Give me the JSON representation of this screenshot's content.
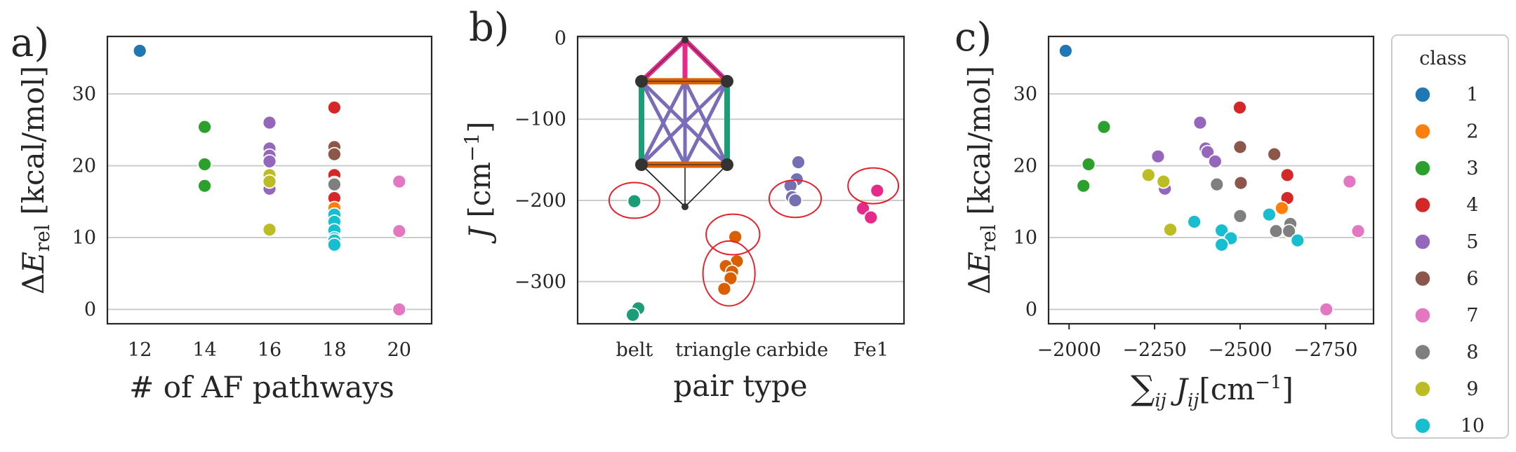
{
  "chart_data": [
    {
      "id": "a",
      "type": "scatter",
      "panel_label": "a)",
      "xlabel": "# of AF pathways",
      "ylabel": "ΔE_rel [kcal/mol]",
      "xlim": [
        11.0,
        21.0
      ],
      "ylim": [
        -2,
        38
      ],
      "xticks": [
        12,
        14,
        16,
        18,
        20
      ],
      "yticks": [
        0,
        10,
        20,
        30
      ],
      "grid": "y",
      "points": [
        {
          "x": 12,
          "y": 36.0,
          "class": 1
        },
        {
          "x": 14,
          "y": 25.4,
          "class": 3
        },
        {
          "x": 14,
          "y": 20.2,
          "class": 3
        },
        {
          "x": 14,
          "y": 17.2,
          "class": 3
        },
        {
          "x": 16,
          "y": 26.0,
          "class": 5
        },
        {
          "x": 16,
          "y": 22.4,
          "class": 5
        },
        {
          "x": 16,
          "y": 21.4,
          "class": 5
        },
        {
          "x": 16,
          "y": 20.6,
          "class": 5
        },
        {
          "x": 16,
          "y": 16.8,
          "class": 5
        },
        {
          "x": 16,
          "y": 18.7,
          "class": 9
        },
        {
          "x": 16,
          "y": 17.8,
          "class": 9
        },
        {
          "x": 16,
          "y": 11.1,
          "class": 9
        },
        {
          "x": 18,
          "y": 28.1,
          "class": 4
        },
        {
          "x": 18,
          "y": 18.7,
          "class": 4
        },
        {
          "x": 18,
          "y": 15.5,
          "class": 4
        },
        {
          "x": 18,
          "y": 22.6,
          "class": 6
        },
        {
          "x": 18,
          "y": 21.6,
          "class": 6
        },
        {
          "x": 18,
          "y": 17.6,
          "class": 6
        },
        {
          "x": 18,
          "y": 14.1,
          "class": 2
        },
        {
          "x": 18,
          "y": 17.4,
          "class": 8
        },
        {
          "x": 18,
          "y": 13.0,
          "class": 8
        },
        {
          "x": 18,
          "y": 11.9,
          "class": 8
        },
        {
          "x": 18,
          "y": 10.9,
          "class": 8
        },
        {
          "x": 18,
          "y": 13.2,
          "class": 10
        },
        {
          "x": 18,
          "y": 12.2,
          "class": 10
        },
        {
          "x": 18,
          "y": 11.0,
          "class": 10
        },
        {
          "x": 18,
          "y": 9.9,
          "class": 10
        },
        {
          "x": 18,
          "y": 9.6,
          "class": 10
        },
        {
          "x": 18,
          "y": 9.0,
          "class": 10
        },
        {
          "x": 20,
          "y": 17.8,
          "class": 7
        },
        {
          "x": 20,
          "y": 10.9,
          "class": 7
        },
        {
          "x": 20,
          "y": 0.0,
          "class": 7
        }
      ]
    },
    {
      "id": "b",
      "type": "scatter",
      "panel_label": "b)",
      "xlabel": "pair type",
      "ylabel": "J [cm⁻¹]",
      "ylim": [
        -352,
        2
      ],
      "yticks": [
        0,
        -100,
        -200,
        -300
      ],
      "categories": [
        "belt",
        "triangle",
        "carbide",
        "Fe1"
      ],
      "grid": "y",
      "points": [
        {
          "cat": "belt",
          "dx": 0.0,
          "y": -201,
          "color": "#1b9e77"
        },
        {
          "cat": "belt",
          "dx": 0.05,
          "y": -333,
          "color": "#1b9e77"
        },
        {
          "cat": "belt",
          "dx": -0.02,
          "y": -341,
          "color": "#1b9e77"
        },
        {
          "cat": "triangle",
          "dx": 0.28,
          "y": -245,
          "color": "#d95f02"
        },
        {
          "cat": "triangle",
          "dx": 0.3,
          "y": -275,
          "color": "#d95f02"
        },
        {
          "cat": "triangle",
          "dx": 0.16,
          "y": -281,
          "color": "#d95f02"
        },
        {
          "cat": "triangle",
          "dx": 0.24,
          "y": -288,
          "color": "#d95f02"
        },
        {
          "cat": "triangle",
          "dx": 0.22,
          "y": -296,
          "color": "#d95f02"
        },
        {
          "cat": "triangle",
          "dx": 0.14,
          "y": -309,
          "color": "#d95f02"
        },
        {
          "cat": "carbide",
          "dx": 0.08,
          "y": -153,
          "color": "#7570b3"
        },
        {
          "cat": "carbide",
          "dx": 0.06,
          "y": -174,
          "color": "#7570b3"
        },
        {
          "cat": "carbide",
          "dx": -0.02,
          "y": -182,
          "color": "#7570b3"
        },
        {
          "cat": "carbide",
          "dx": 0.0,
          "y": -196,
          "color": "#7570b3"
        },
        {
          "cat": "carbide",
          "dx": 0.04,
          "y": -200,
          "color": "#7570b3"
        },
        {
          "cat": "Fe1",
          "dx": 0.08,
          "y": -188,
          "color": "#e7298a"
        },
        {
          "cat": "Fe1",
          "dx": -0.1,
          "y": -210,
          "color": "#e7298a"
        },
        {
          "cat": "Fe1",
          "dx": 0.0,
          "y": -221,
          "color": "#e7298a"
        }
      ],
      "annotations": [
        {
          "cat": "belt",
          "dx": 0.0,
          "y": -200,
          "rx": 0.32,
          "ry": 22
        },
        {
          "cat": "triangle",
          "dx": 0.25,
          "y": -242,
          "rx": 0.34,
          "ry": 25
        },
        {
          "cat": "triangle",
          "dx": 0.2,
          "y": -290,
          "rx": 0.33,
          "ry": 40
        },
        {
          "cat": "carbide",
          "dx": 0.04,
          "y": -198,
          "rx": 0.33,
          "ry": 23
        },
        {
          "cat": "Fe1",
          "dx": 0.03,
          "y": -182,
          "rx": 0.32,
          "ry": 22
        }
      ],
      "inset": "Fe6C cluster schematic with colored pair edges"
    },
    {
      "id": "c",
      "type": "scatter",
      "panel_label": "c)",
      "xlabel": "∑ij Jij[cm⁻¹]",
      "ylabel": "ΔE_rel [kcal/mol]",
      "xlim": [
        -1940,
        -2890
      ],
      "ylim": [
        -2,
        38
      ],
      "xticks": [
        -2000,
        -2250,
        -2500,
        -2750
      ],
      "xtick_labels": [
        "−2000",
        "−2250",
        "−2500",
        "−2750"
      ],
      "yticks": [
        0,
        10,
        20,
        30
      ],
      "grid": "y",
      "points": [
        {
          "x": -1990,
          "y": 36.0,
          "class": 1
        },
        {
          "x": -2102,
          "y": 25.4,
          "class": 3
        },
        {
          "x": -2057,
          "y": 20.2,
          "class": 3
        },
        {
          "x": -2042,
          "y": 17.2,
          "class": 3
        },
        {
          "x": -2383,
          "y": 26.0,
          "class": 5
        },
        {
          "x": -2399,
          "y": 22.4,
          "class": 5
        },
        {
          "x": -2405,
          "y": 21.9,
          "class": 5
        },
        {
          "x": -2427,
          "y": 20.6,
          "class": 5
        },
        {
          "x": -2260,
          "y": 21.3,
          "class": 5
        },
        {
          "x": -2280,
          "y": 16.8,
          "class": 5
        },
        {
          "x": -2232,
          "y": 18.7,
          "class": 9
        },
        {
          "x": -2276,
          "y": 17.8,
          "class": 9
        },
        {
          "x": -2296,
          "y": 11.1,
          "class": 9
        },
        {
          "x": -2499,
          "y": 28.1,
          "class": 4
        },
        {
          "x": -2638,
          "y": 18.7,
          "class": 4
        },
        {
          "x": -2638,
          "y": 15.5,
          "class": 4
        },
        {
          "x": -2500,
          "y": 22.6,
          "class": 6
        },
        {
          "x": -2600,
          "y": 21.6,
          "class": 6
        },
        {
          "x": -2502,
          "y": 17.6,
          "class": 6
        },
        {
          "x": -2622,
          "y": 14.1,
          "class": 2
        },
        {
          "x": -2432,
          "y": 17.4,
          "class": 8
        },
        {
          "x": -2500,
          "y": 13.0,
          "class": 8
        },
        {
          "x": -2647,
          "y": 11.9,
          "class": 8
        },
        {
          "x": -2605,
          "y": 10.9,
          "class": 8
        },
        {
          "x": -2643,
          "y": 10.9,
          "class": 8
        },
        {
          "x": -2585,
          "y": 13.2,
          "class": 10
        },
        {
          "x": -2366,
          "y": 12.2,
          "class": 10
        },
        {
          "x": -2446,
          "y": 11.0,
          "class": 10
        },
        {
          "x": -2473,
          "y": 9.9,
          "class": 10
        },
        {
          "x": -2446,
          "y": 9.0,
          "class": 10
        },
        {
          "x": -2668,
          "y": 9.6,
          "class": 10
        },
        {
          "x": -2820,
          "y": 17.8,
          "class": 7
        },
        {
          "x": -2845,
          "y": 10.9,
          "class": 7
        },
        {
          "x": -2752,
          "y": 0.0,
          "class": 7
        }
      ]
    }
  ],
  "legend": {
    "title": "class",
    "items": [
      {
        "label": "1",
        "color": "#1f77b4"
      },
      {
        "label": "2",
        "color": "#ff7f0e"
      },
      {
        "label": "3",
        "color": "#2ca02c"
      },
      {
        "label": "4",
        "color": "#d62728"
      },
      {
        "label": "5",
        "color": "#9467bd"
      },
      {
        "label": "6",
        "color": "#8c564b"
      },
      {
        "label": "7",
        "color": "#e377c2"
      },
      {
        "label": "8",
        "color": "#7f7f7f"
      },
      {
        "label": "9",
        "color": "#bcbd22"
      },
      {
        "label": "10",
        "color": "#17becf"
      }
    ]
  }
}
